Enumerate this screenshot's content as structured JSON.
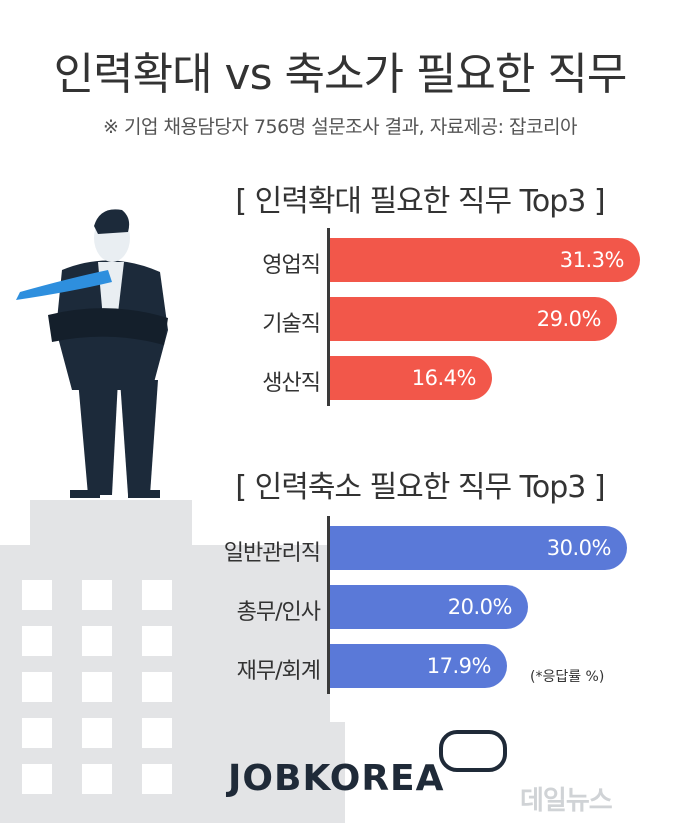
{
  "title": "인력확대 vs 축소가 필요한 직무",
  "subtitle": "※ 기업 채용담당자 756명 설문조사 결과, 자료제공: 잡코리아",
  "colors": {
    "expand": "#f2574a",
    "reduce": "#5a79d8",
    "building": "#e3e4e6",
    "window": "#ffffff",
    "suit": "#1c2a3a",
    "tie": "#2e8fde"
  },
  "chart_data": [
    {
      "type": "bar",
      "orientation": "horizontal",
      "title": "[ 인력확대 필요한 직무 Top3 ]",
      "categories": [
        "영업직",
        "기술직",
        "생산직"
      ],
      "values": [
        31.3,
        29.0,
        16.4
      ],
      "value_labels": [
        "31.3%",
        "29.0%",
        "16.4%"
      ],
      "unit": "%",
      "xlim": [
        0,
        31.3
      ],
      "color": "#f2574a"
    },
    {
      "type": "bar",
      "orientation": "horizontal",
      "title": "[ 인력축소 필요한 직무 Top3 ]",
      "categories": [
        "일반관리직",
        "총무/인사",
        "재무/회계"
      ],
      "values": [
        30.0,
        20.0,
        17.9
      ],
      "value_labels": [
        "30.0%",
        "20.0%",
        "17.9%"
      ],
      "unit": "%",
      "xlim": [
        0,
        31.3
      ],
      "color": "#5a79d8"
    }
  ],
  "note": "(*응답률 %)",
  "logo": "JOBKOREA",
  "watermark": "데일뉴스",
  "illustration": {
    "figure": "businessman-icon",
    "building": "building-icon"
  }
}
